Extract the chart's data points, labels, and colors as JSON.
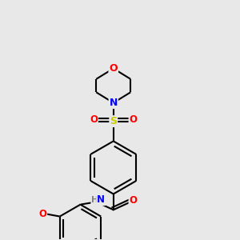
{
  "background_color": "#e8e8e8",
  "atom_colors": {
    "C": "#000000",
    "N": "#0000ff",
    "O": "#ff0000",
    "S": "#cccc00",
    "H": "#808080"
  },
  "bond_color": "#000000",
  "bond_width": 1.5,
  "figsize": [
    3.0,
    3.0
  ],
  "dpi": 100
}
